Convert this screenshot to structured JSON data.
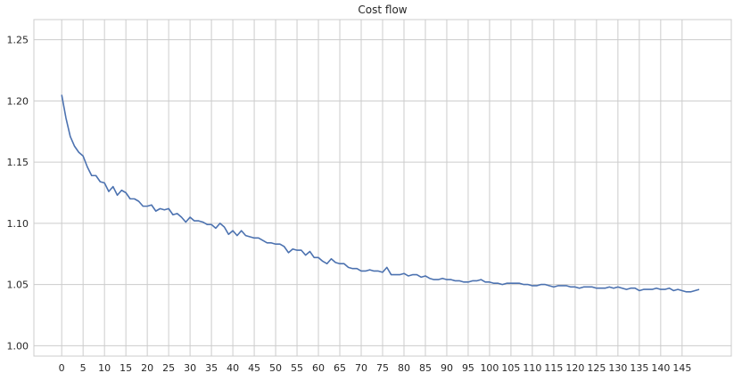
{
  "chart_data": {
    "type": "line",
    "title": "Cost flow",
    "xlabel": "",
    "ylabel": "",
    "xlim": [
      -6.5,
      156.5
    ],
    "ylim": [
      0.9915,
      1.2665
    ],
    "x_ticks": [
      0,
      5,
      10,
      15,
      20,
      25,
      30,
      35,
      40,
      45,
      50,
      55,
      60,
      65,
      70,
      75,
      80,
      85,
      90,
      95,
      100,
      105,
      110,
      115,
      120,
      125,
      130,
      135,
      140,
      145
    ],
    "y_ticks": [
      1.0,
      1.05,
      1.1,
      1.15,
      1.2,
      1.25
    ],
    "grid": true,
    "line_color": "#4c72b0",
    "series": [
      {
        "name": "",
        "values": [
          1.205,
          1.186,
          1.171,
          1.163,
          1.158,
          1.155,
          1.146,
          1.139,
          1.139,
          1.134,
          1.133,
          1.126,
          1.13,
          1.123,
          1.127,
          1.125,
          1.12,
          1.12,
          1.118,
          1.114,
          1.114,
          1.115,
          1.11,
          1.112,
          1.111,
          1.112,
          1.107,
          1.108,
          1.105,
          1.101,
          1.105,
          1.102,
          1.102,
          1.101,
          1.099,
          1.099,
          1.096,
          1.1,
          1.097,
          1.091,
          1.094,
          1.09,
          1.094,
          1.09,
          1.089,
          1.088,
          1.088,
          1.086,
          1.084,
          1.084,
          1.083,
          1.083,
          1.081,
          1.076,
          1.079,
          1.078,
          1.078,
          1.074,
          1.077,
          1.072,
          1.072,
          1.069,
          1.067,
          1.071,
          1.068,
          1.067,
          1.067,
          1.064,
          1.063,
          1.063,
          1.061,
          1.061,
          1.062,
          1.061,
          1.061,
          1.06,
          1.064,
          1.058,
          1.058,
          1.058,
          1.059,
          1.057,
          1.058,
          1.058,
          1.056,
          1.057,
          1.055,
          1.054,
          1.054,
          1.055,
          1.054,
          1.054,
          1.053,
          1.053,
          1.052,
          1.052,
          1.053,
          1.053,
          1.054,
          1.052,
          1.052,
          1.051,
          1.051,
          1.05,
          1.051,
          1.051,
          1.051,
          1.051,
          1.05,
          1.05,
          1.049,
          1.049,
          1.05,
          1.05,
          1.049,
          1.048,
          1.049,
          1.049,
          1.049,
          1.048,
          1.048,
          1.047,
          1.048,
          1.048,
          1.048,
          1.047,
          1.047,
          1.047,
          1.048,
          1.047,
          1.048,
          1.047,
          1.046,
          1.047,
          1.047,
          1.045,
          1.046,
          1.046,
          1.046,
          1.047,
          1.046,
          1.046,
          1.047,
          1.045,
          1.046,
          1.045,
          1.044,
          1.044,
          1.045,
          1.046
        ]
      }
    ]
  }
}
